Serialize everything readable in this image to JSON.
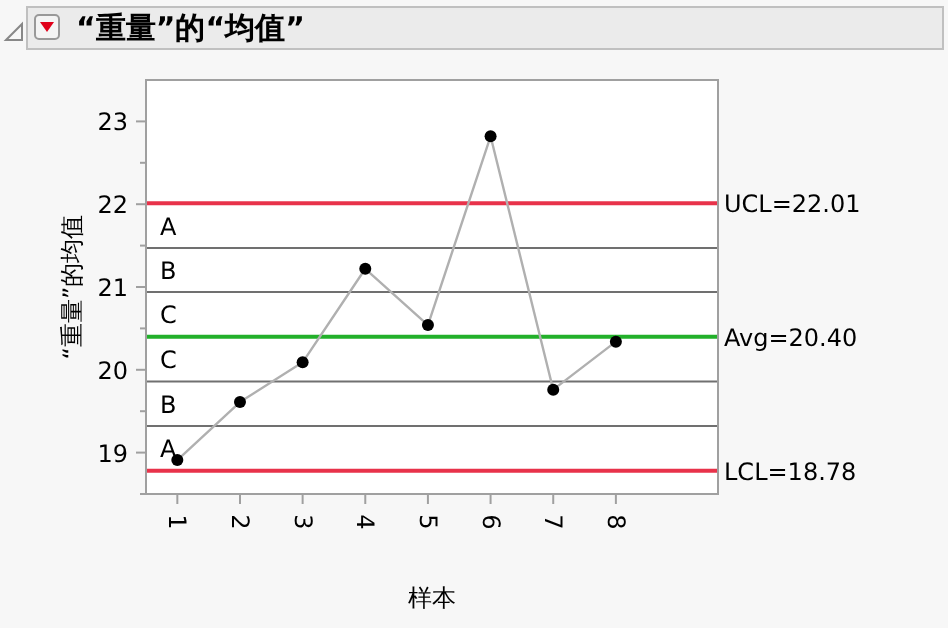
{
  "chart_data": {
    "type": "line",
    "title": "“重量”的“均值”",
    "xlabel": "样本",
    "ylabel": "“重量”的均值",
    "x": [
      1,
      2,
      3,
      4,
      5,
      6,
      7,
      8
    ],
    "series": [
      {
        "color": "#000000",
        "values": [
          18.91,
          19.61,
          20.09,
          21.22,
          20.54,
          22.82,
          19.76,
          20.34
        ]
      }
    ],
    "xlim": [
      0.5,
      9.63
    ],
    "xticks": [
      1,
      2,
      3,
      4,
      5,
      6,
      7,
      8
    ],
    "ylim": [
      18.5,
      23.5
    ],
    "yticks": [
      {
        "value": 18.5,
        "label": null
      },
      19,
      {
        "value": 19.5,
        "label": null
      },
      20,
      {
        "value": 20.5,
        "label": null
      },
      21,
      {
        "value": 21.5,
        "label": null
      },
      22,
      {
        "value": 22.5,
        "label": null
      },
      23
    ],
    "marker": "circle",
    "grid": false,
    "annotations": [
      "A",
      "B",
      "C",
      "C",
      "B",
      "A"
    ],
    "ref_lines": [
      {
        "axis": "y",
        "value": 21.47,
        "color": "#707070"
      },
      {
        "axis": "y",
        "value": 20.94,
        "color": "#707070"
      },
      {
        "axis": "y",
        "value": 19.86,
        "color": "#707070"
      },
      {
        "axis": "y",
        "value": 19.32,
        "color": "#707070"
      },
      {
        "axis": "y",
        "value": 22.01,
        "label": "UCL=22.01",
        "color": "#e8324a"
      },
      {
        "axis": "y",
        "value": 20.4,
        "label": "Avg=20.40",
        "color": "#22b02a"
      },
      {
        "axis": "y",
        "value": 18.78,
        "label": "LCL=18.78",
        "color": "#e8324a"
      }
    ]
  }
}
